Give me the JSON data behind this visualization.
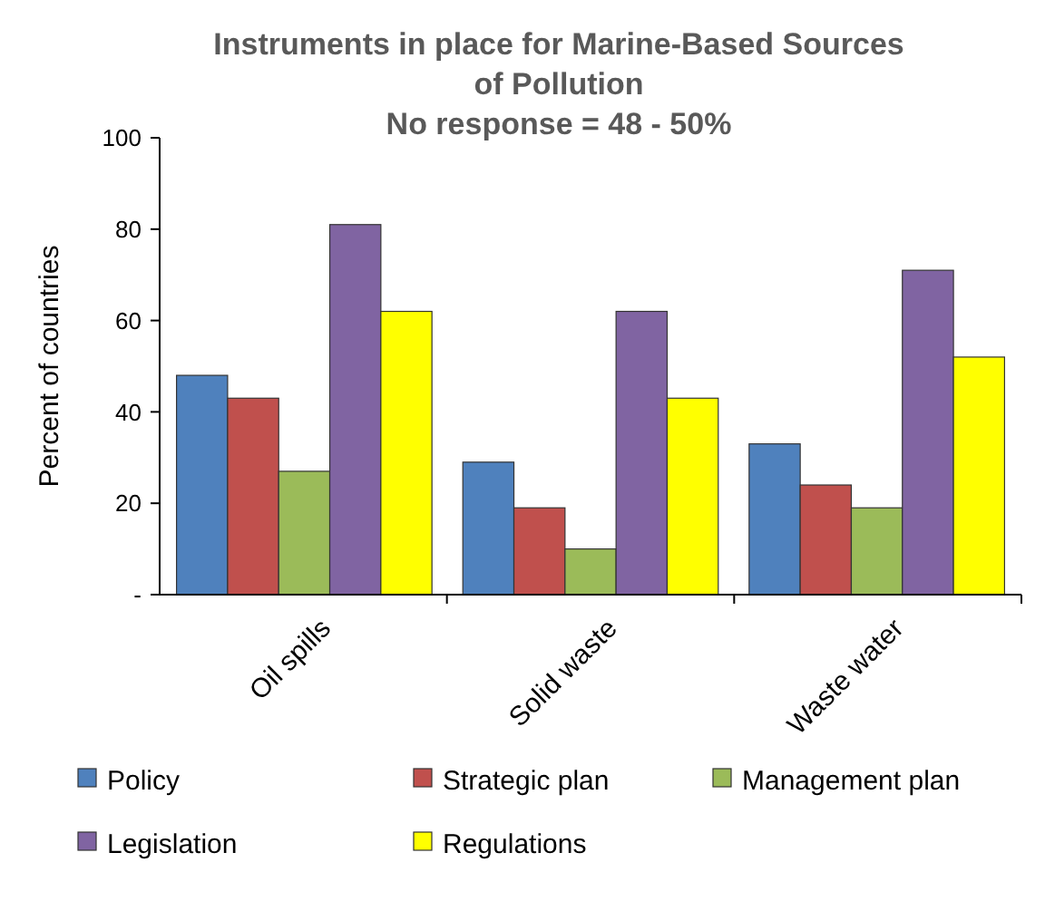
{
  "chart_data": {
    "type": "bar",
    "title": "Instruments in place for Marine-Based Sources of Pollution",
    "subtitle": "No response = 48 - 50%",
    "ylabel": "Percent of countries",
    "categories": [
      "Oil spills",
      "Solid waste",
      "Waste water"
    ],
    "series": [
      {
        "name": "Policy",
        "color": "#4f81bd",
        "values": [
          48,
          29,
          33
        ]
      },
      {
        "name": "Strategic plan",
        "color": "#c0504d",
        "values": [
          43,
          19,
          24
        ]
      },
      {
        "name": "Management plan",
        "color": "#9bbb59",
        "values": [
          27,
          10,
          19
        ]
      },
      {
        "name": "Legislation",
        "color": "#8064a2",
        "values": [
          81,
          62,
          71
        ]
      },
      {
        "name": "Regulations",
        "color": "#ffff00",
        "values": [
          62,
          43,
          52
        ]
      }
    ],
    "ylim": [
      0,
      100
    ],
    "yticks": [
      {
        "value": 0,
        "label": "-"
      },
      20,
      40,
      60,
      80,
      100
    ],
    "legend": "bottom"
  }
}
